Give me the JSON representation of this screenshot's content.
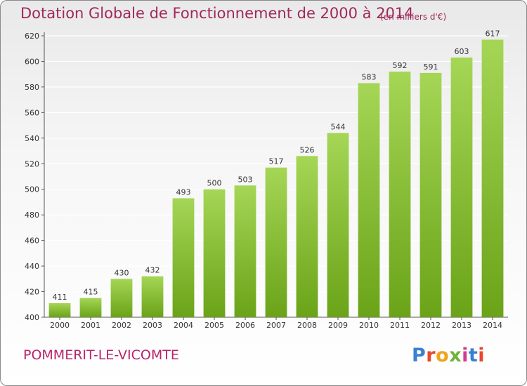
{
  "header": {
    "title": "Dotation Globale de Fonctionnement de 2000 à 2014",
    "unit": "(en milliers d'€)"
  },
  "footer": {
    "commune": "POMMERIT-LE-VICOMTE",
    "brand": "Proxiti",
    "brand_colors": [
      "#3b7fd1",
      "#e8482c",
      "#f2a31c",
      "#6fb437",
      "#d63a8f",
      "#3b7fd1",
      "#e8482c"
    ]
  },
  "colors": {
    "bar_light": "#a5d656",
    "bar_dark": "#6aa318",
    "title": "#a0285a",
    "commune": "#b8246b",
    "grid": "#ffffff",
    "axis_text": "#333333"
  },
  "chart_data": {
    "type": "bar",
    "title": "Dotation Globale de Fonctionnement de 2000 à 2014",
    "categories": [
      "2000",
      "2001",
      "2002",
      "2003",
      "2004",
      "2005",
      "2006",
      "2007",
      "2008",
      "2009",
      "2010",
      "2011",
      "2012",
      "2013",
      "2014"
    ],
    "values": [
      411,
      415,
      430,
      432,
      493,
      500,
      503,
      517,
      526,
      544,
      583,
      592,
      591,
      603,
      617
    ],
    "ylim": [
      400,
      620
    ],
    "yticks": [
      400,
      420,
      440,
      460,
      480,
      500,
      520,
      540,
      560,
      580,
      600,
      620
    ],
    "grid": true,
    "data_labels": true
  }
}
